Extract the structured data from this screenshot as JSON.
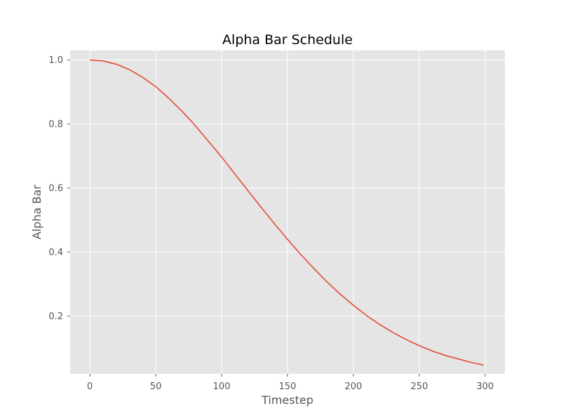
{
  "chart_data": {
    "type": "line",
    "title": "Alpha Bar Schedule",
    "xlabel": "Timestep",
    "ylabel": "Alpha Bar",
    "xlim": [
      -15,
      315
    ],
    "ylim": [
      0.02,
      1.03
    ],
    "x_ticks": [
      0,
      50,
      100,
      150,
      200,
      250,
      300
    ],
    "x_tick_labels": [
      "0",
      "50",
      "100",
      "150",
      "200",
      "250",
      "300"
    ],
    "y_ticks": [
      0.2,
      0.4,
      0.6,
      0.8,
      1.0
    ],
    "y_tick_labels": [
      "0.2",
      "0.4",
      "0.6",
      "0.8",
      "1.0"
    ],
    "grid": true,
    "series": [
      {
        "color": "#e24a33",
        "x": [
          0,
          10,
          20,
          30,
          40,
          50,
          60,
          70,
          80,
          90,
          100,
          110,
          120,
          130,
          140,
          150,
          160,
          170,
          180,
          190,
          200,
          210,
          220,
          230,
          240,
          250,
          260,
          270,
          280,
          290,
          299
        ],
        "y": [
          1.0,
          0.997,
          0.987,
          0.97,
          0.946,
          0.917,
          0.88,
          0.84,
          0.795,
          0.746,
          0.697,
          0.644,
          0.592,
          0.54,
          0.489,
          0.44,
          0.393,
          0.349,
          0.307,
          0.269,
          0.234,
          0.202,
          0.174,
          0.149,
          0.127,
          0.108,
          0.091,
          0.077,
          0.066,
          0.055,
          0.047
        ]
      }
    ]
  },
  "colors": {
    "plot_background": "#e5e5e5",
    "grid": "#ffffff",
    "line": "#e24a33"
  }
}
